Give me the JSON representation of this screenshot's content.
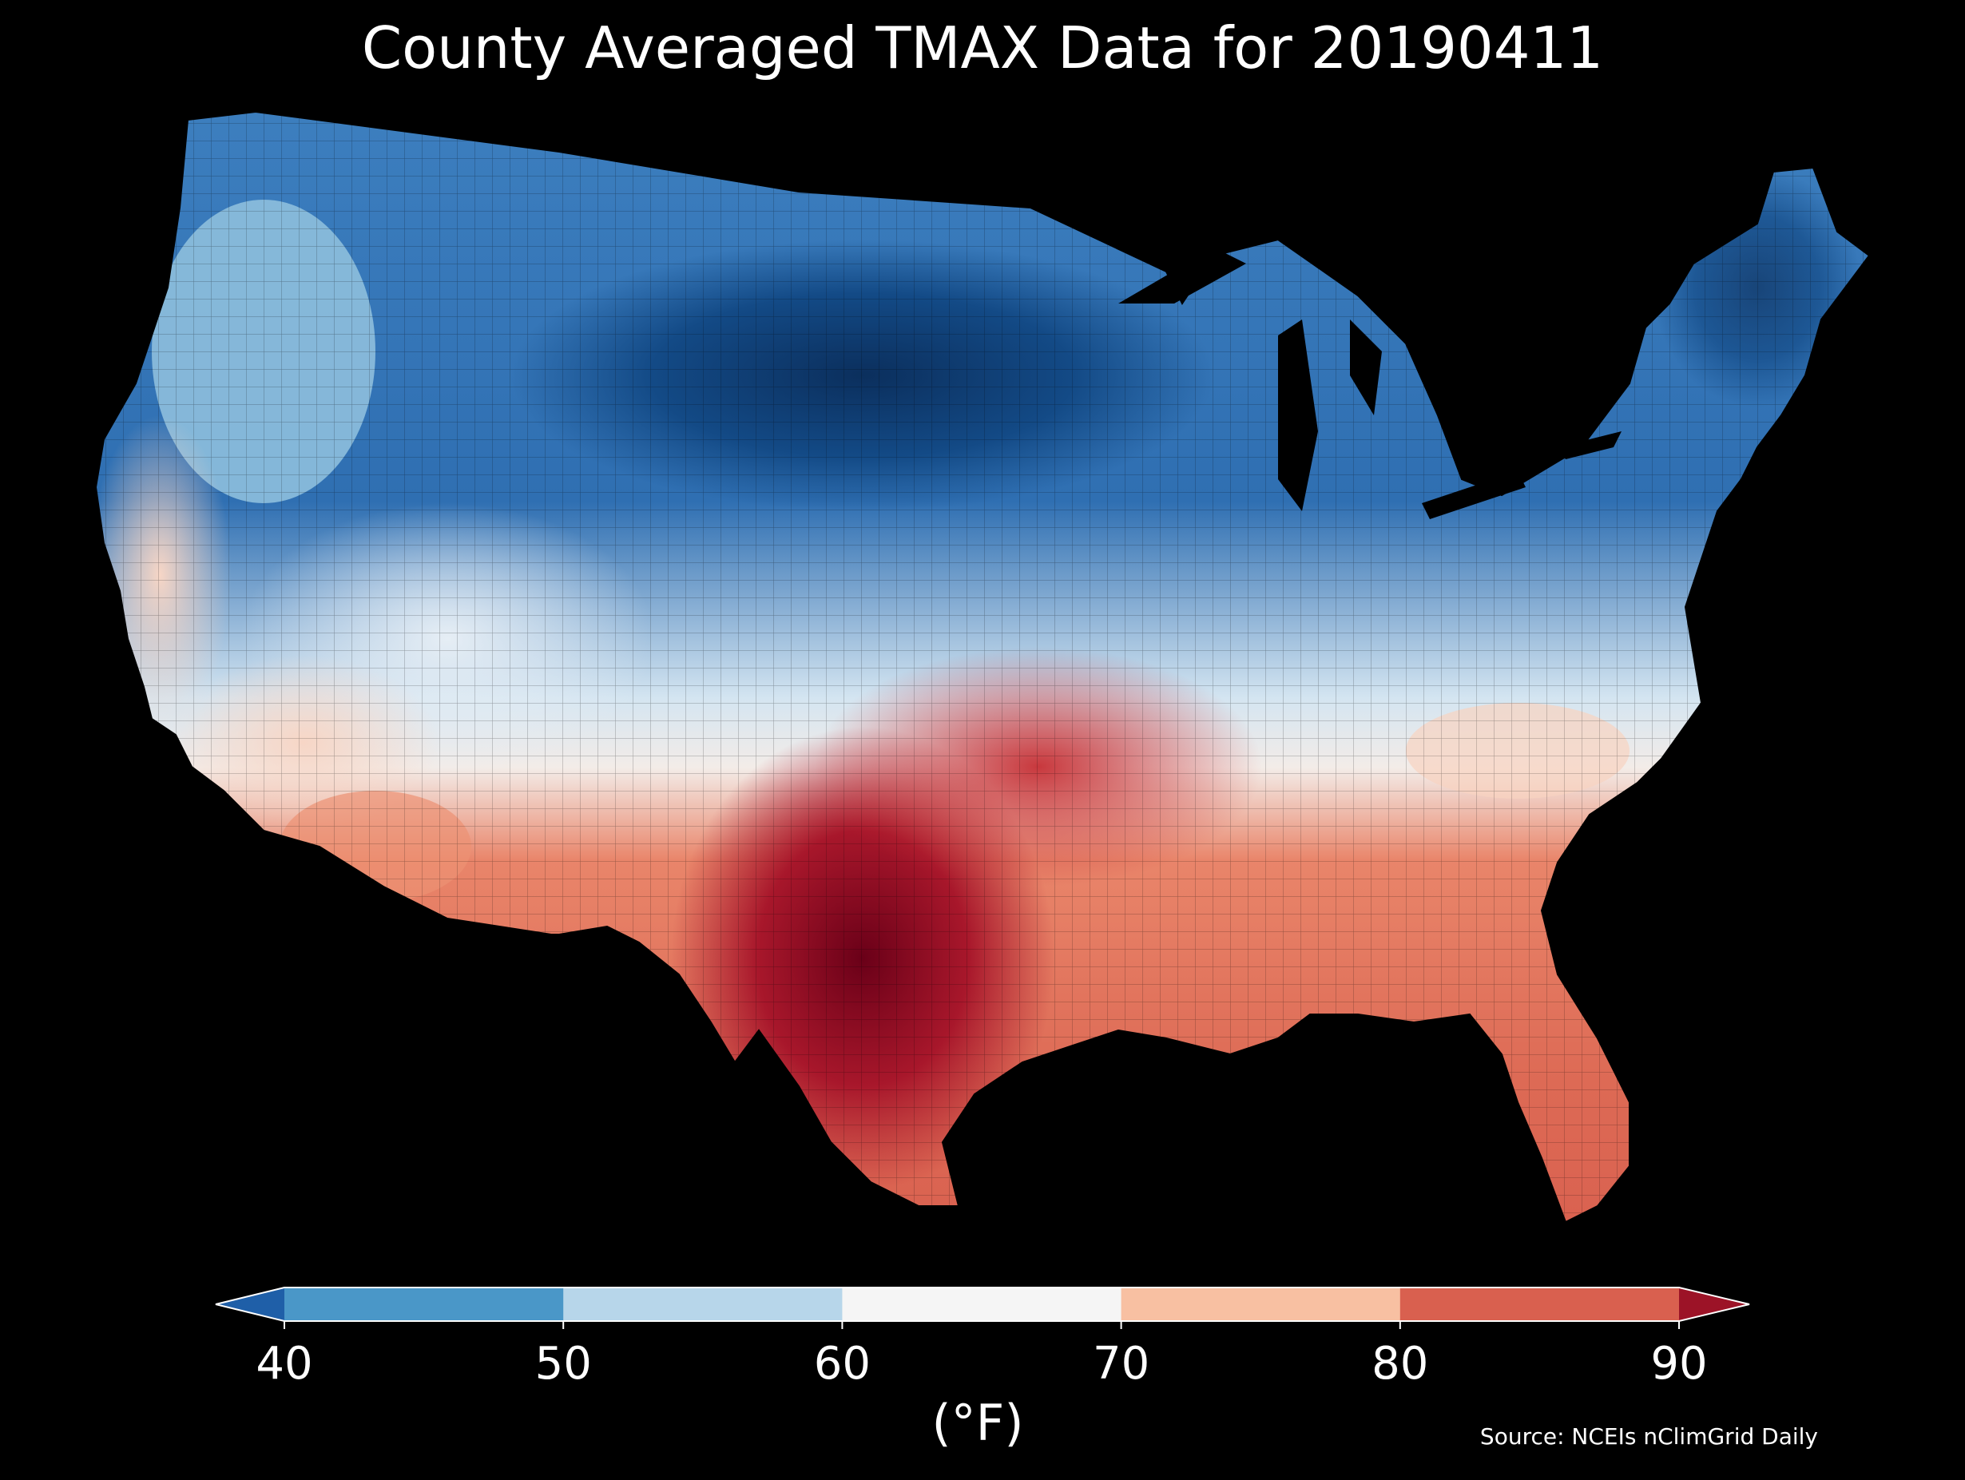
{
  "title": "County Averaged TMAX Data for 20190411",
  "colorbar": {
    "unit_label": "(°F)",
    "ticks": [
      "40",
      "50",
      "60",
      "70",
      "80",
      "90"
    ],
    "bins": [
      {
        "range": "<40",
        "color": "#1f5fa8"
      },
      {
        "range": "40-50",
        "color": "#4a97c8"
      },
      {
        "range": "50-60",
        "color": "#b7d6ea"
      },
      {
        "range": "60-70",
        "color": "#f5f5f5"
      },
      {
        "range": "70-80",
        "color": "#f8c0a2"
      },
      {
        "range": "80-90",
        "color": "#d9604f"
      },
      {
        "range": ">90",
        "color": "#9c1327"
      }
    ],
    "extend": "both"
  },
  "source": "Source: NCEIs nClimGrid Daily",
  "map": {
    "region": "Contiguous United States",
    "background": "#000000",
    "pattern": "cold north (Northern Plains coldest, <40°F), warm south (south Texas hottest, >90°F)"
  }
}
